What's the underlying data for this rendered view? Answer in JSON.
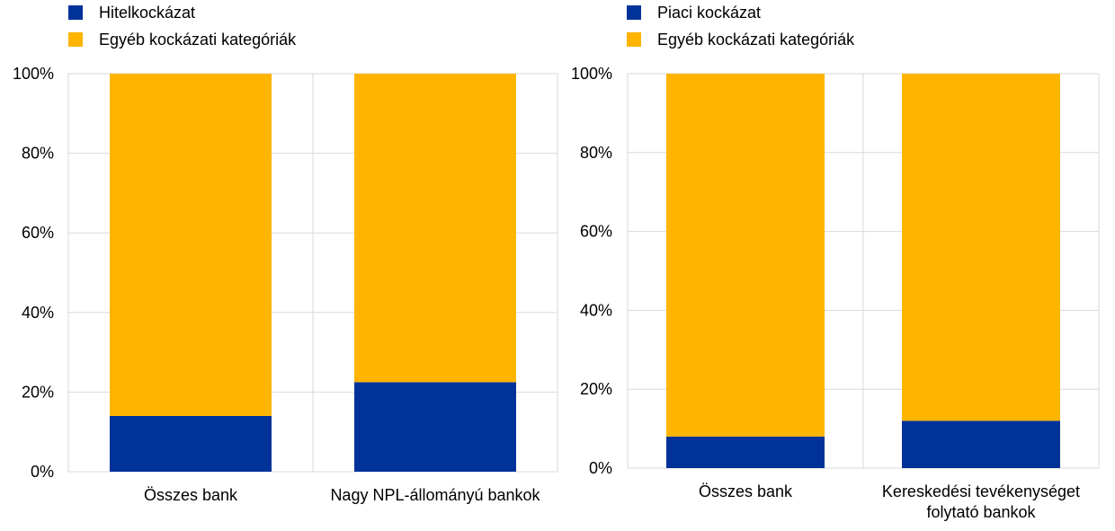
{
  "chart_data": [
    {
      "type": "bar",
      "stacked": true,
      "categories": [
        "Összes bank",
        "Nagy NPL-állományú bankok"
      ],
      "series": [
        {
          "name": "Hitelkockázat",
          "values": [
            14,
            22.5
          ]
        },
        {
          "name": "Egyéb kockázati kategóriák",
          "values": [
            86,
            77.5
          ]
        }
      ],
      "ylim": [
        0,
        100
      ],
      "yticks": [
        "0%",
        "20%",
        "40%",
        "60%",
        "80%",
        "100%"
      ],
      "grid": true,
      "legend": "top-left",
      "colors": [
        "#003299",
        "#ffb400"
      ]
    },
    {
      "type": "bar",
      "stacked": true,
      "categories": [
        "Összes bank",
        "Kereskedési tevékenységet folytató bankok"
      ],
      "category_lines": [
        [
          "Összes bank"
        ],
        [
          "Kereskedési tevékenységet",
          "folytató bankok"
        ]
      ],
      "series": [
        {
          "name": "Piaci kockázat",
          "values": [
            8,
            12
          ]
        },
        {
          "name": "Egyéb kockázati kategóriák",
          "values": [
            92,
            88
          ]
        }
      ],
      "ylim": [
        0,
        100
      ],
      "yticks": [
        "0%",
        "20%",
        "40%",
        "60%",
        "80%",
        "100%"
      ],
      "grid": true,
      "legend": "top-left",
      "colors": [
        "#003299",
        "#ffb400"
      ]
    }
  ]
}
